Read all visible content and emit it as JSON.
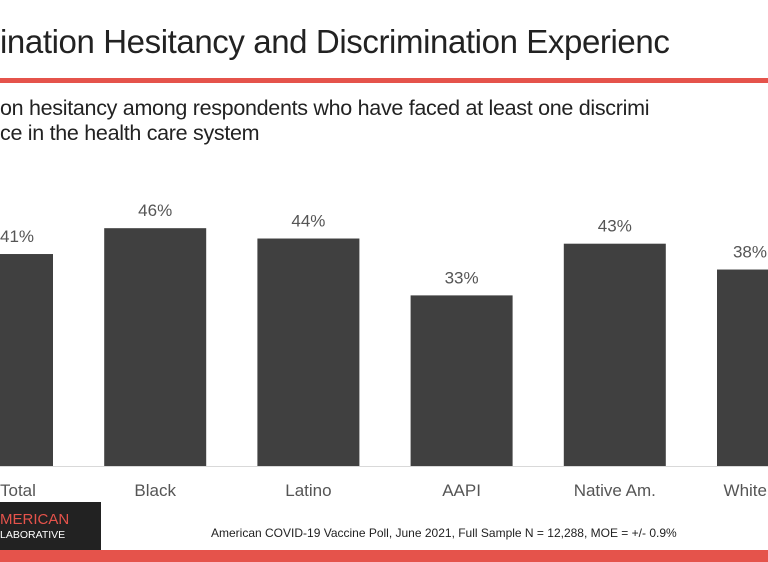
{
  "header": {
    "title": "ination Hesitancy and Discrimination Experienc",
    "subtitle_line1": "on hesitancy among respondents who have faced at least one discrimi",
    "subtitle_line2": "ce in the health care system"
  },
  "colors": {
    "accent": "#E5534B",
    "bar": "#404040",
    "label": "#555555"
  },
  "chart_data": {
    "type": "bar",
    "categories": [
      "Total",
      "Black",
      "Latino",
      "AAPI",
      "Native Am.",
      "White"
    ],
    "values": [
      41,
      46,
      44,
      33,
      43,
      38
    ],
    "data_labels": [
      "41%",
      "46%",
      "44%",
      "33%",
      "43%",
      "38%"
    ],
    "ylim": [
      0,
      50
    ],
    "grid": false,
    "legend": "none"
  },
  "footer": {
    "logo_line1": "MERICAN",
    "logo_line2": "LABORATIVE",
    "source": "American COVID-19 Vaccine Poll, June 2021, Full Sample N = 12,288, MOE = +/- 0.9%"
  }
}
